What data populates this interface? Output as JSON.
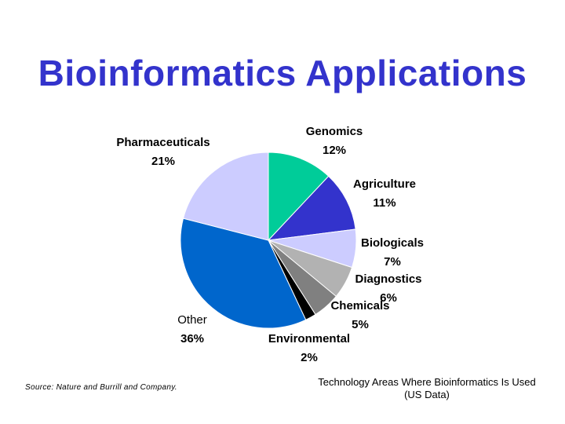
{
  "title": "Bioinformatics Applications",
  "source": "Source: Nature and Burrill and Company.",
  "caption": "Technology Areas Where Bioinformatics Is Used (US Data)",
  "chart_data": {
    "type": "pie",
    "title": "Bioinformatics Applications",
    "slices": [
      {
        "name": "Genomics",
        "value": 12,
        "label": "12%",
        "color": "#00cc99"
      },
      {
        "name": "Agriculture",
        "value": 11,
        "label": "11%",
        "color": "#3333cc"
      },
      {
        "name": "Biologicals",
        "value": 7,
        "label": "7%",
        "color": "#ccccff"
      },
      {
        "name": "Diagnostics",
        "value": 6,
        "label": "6%",
        "color": "#b2b2b2"
      },
      {
        "name": "Chemicals",
        "value": 5,
        "label": "5%",
        "color": "#808080"
      },
      {
        "name": "Environmental",
        "value": 2,
        "label": "2%",
        "color": "#000000"
      },
      {
        "name": "Other",
        "value": 36,
        "label": "36%",
        "color": "#0066cc"
      },
      {
        "name": "Pharmaceuticals",
        "value": 21,
        "label": "21%",
        "color": "#ccccff"
      }
    ]
  }
}
